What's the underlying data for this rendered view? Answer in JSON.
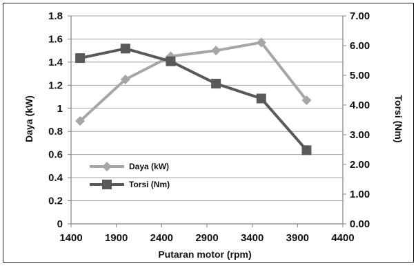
{
  "chart_data": {
    "type": "line",
    "xlabel": "Putaran motor (rpm)",
    "ylabel": "Daya (kW)",
    "y2label": "Torsi (Nm)",
    "xlim": [
      1400,
      4400
    ],
    "ylim": [
      0,
      1.8
    ],
    "y2lim": [
      0,
      7
    ],
    "x_ticks": [
      "1400",
      "1900",
      "2400",
      "2900",
      "3400",
      "3900",
      "4400"
    ],
    "y_ticks": [
      "0",
      "0.2",
      "0.4",
      "0.6",
      "0.8",
      "1",
      "1.2",
      "1.4",
      "1.6",
      "1.8"
    ],
    "y2_ticks": [
      "0.00",
      "1.00",
      "2.00",
      "3.00",
      "4.00",
      "5.00",
      "6.00",
      "7.00"
    ],
    "grid": true,
    "legend_position": "bottom-left",
    "series": [
      {
        "name": "Daya (kW)",
        "axis": "left",
        "color": "#a6a6a6",
        "marker": "diamond",
        "x": [
          1500,
          2000,
          2500,
          3000,
          3500,
          4000
        ],
        "values": [
          0.89,
          1.25,
          1.45,
          1.5,
          1.57,
          1.07
        ]
      },
      {
        "name": "Torsi (Nm)",
        "axis": "right",
        "color": "#595959",
        "marker": "square",
        "x": [
          1500,
          2000,
          2500,
          3000,
          3500,
          4000
        ],
        "values": [
          5.58,
          5.9,
          5.47,
          4.72,
          4.22,
          2.48
        ]
      }
    ]
  }
}
